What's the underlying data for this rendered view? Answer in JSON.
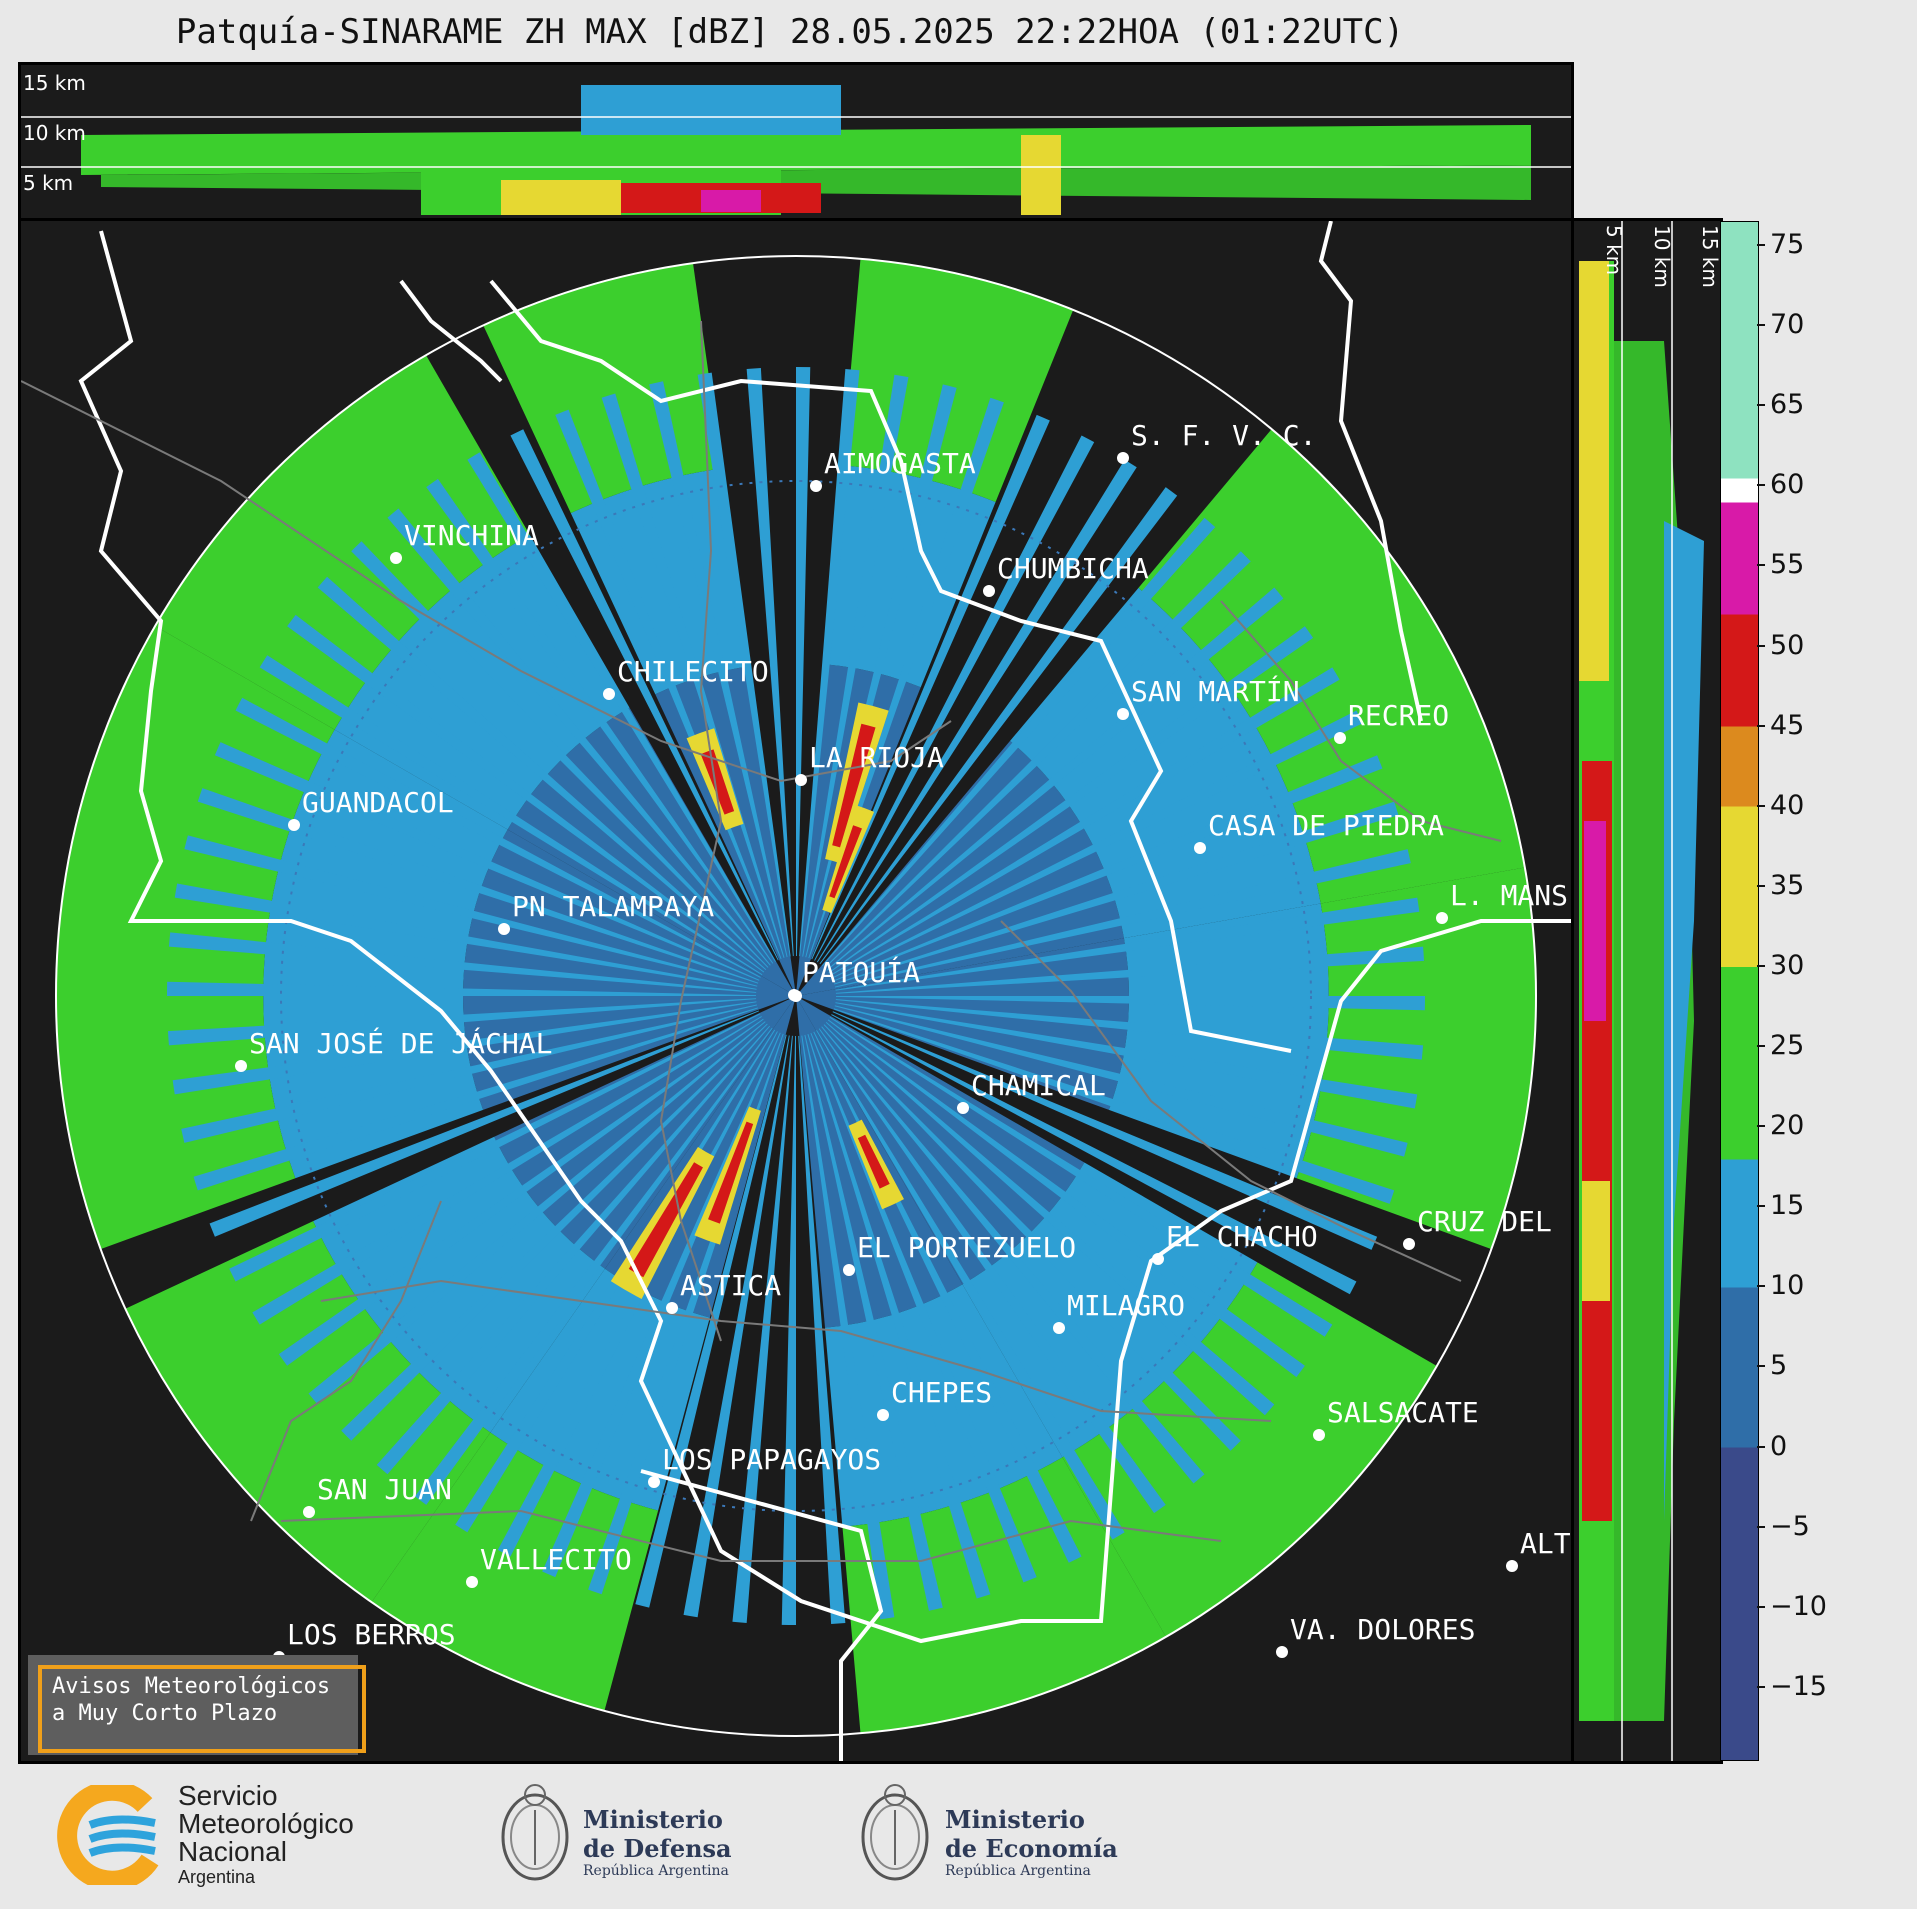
{
  "title": "Patquía-SINARAME ZH MAX [dBZ] 28.05.2025 22:22HOA (01:22UTC)",
  "top_panel": {
    "altitudes": [
      "15 km",
      "10 km",
      "5 km"
    ]
  },
  "side_panel": {
    "altitudes": [
      "5 km",
      "10 km",
      "15 km"
    ]
  },
  "colorbar": {
    "ticks": [
      "75",
      "70",
      "65",
      "60",
      "55",
      "50",
      "45",
      "40",
      "35",
      "30",
      "25",
      "20",
      "15",
      "10",
      "5",
      "0",
      "−5",
      "−10",
      "−15"
    ],
    "range": [
      -19.5,
      76.5
    ],
    "stops": [
      {
        "from": -19.5,
        "to": 0,
        "color": "#3a4a8a"
      },
      {
        "from": 0,
        "to": 10,
        "color": "#2f6ea8"
      },
      {
        "from": 10,
        "to": 18,
        "color": "#2e9fd4"
      },
      {
        "from": 18,
        "to": 30,
        "color": "#3ccf2d"
      },
      {
        "from": 30,
        "to": 40,
        "color": "#e6d832"
      },
      {
        "from": 40,
        "to": 45,
        "color": "#dc8a1e"
      },
      {
        "from": 45,
        "to": 52,
        "color": "#d41818"
      },
      {
        "from": 52,
        "to": 59,
        "color": "#d81aa8"
      },
      {
        "from": 59,
        "to": 60.5,
        "color": "#ffffff"
      },
      {
        "from": 60.5,
        "to": 76.5,
        "color": "#8ee2c0"
      }
    ]
  },
  "cities": [
    {
      "name": "AIMOGASTA"
    },
    {
      "name": "S. F. V. C."
    },
    {
      "name": "VINCHINA"
    },
    {
      "name": "CHUMBICHA"
    },
    {
      "name": "CHILECITO"
    },
    {
      "name": "SAN MARTÍN"
    },
    {
      "name": "RECREO"
    },
    {
      "name": "LA RIOJA"
    },
    {
      "name": "GUANDACOL"
    },
    {
      "name": "CASA DE PIEDRA"
    },
    {
      "name": "L. MANS"
    },
    {
      "name": "PN TALAMPAYA"
    },
    {
      "name": "PATQUÍA"
    },
    {
      "name": "SAN JOSÉ DE JÁCHAL"
    },
    {
      "name": "CHAMICAL"
    },
    {
      "name": "CRUZ DEL"
    },
    {
      "name": "EL CHACHO"
    },
    {
      "name": "EL PORTEZUELO"
    },
    {
      "name": "ASTICA"
    },
    {
      "name": "MILAGRO"
    },
    {
      "name": "CHEPES"
    },
    {
      "name": "SALSACATE"
    },
    {
      "name": "LOS PAPAGAYOS"
    },
    {
      "name": "SAN JUAN"
    },
    {
      "name": "ALT"
    },
    {
      "name": "VALLECITO"
    },
    {
      "name": "VA. DOLORES"
    },
    {
      "name": "LOS BERROS"
    }
  ],
  "warning_box": {
    "line1": "Avisos Meteorológicos",
    "line2": "a Muy Corto Plazo"
  },
  "logos": {
    "smn": {
      "line1": "Servicio",
      "line2": "Meteorológico",
      "line3": "Nacional",
      "line4": "Argentina"
    },
    "defensa": {
      "line1": "Ministerio",
      "line2": "de Defensa",
      "line3": "República Argentina"
    },
    "economia": {
      "line1": "Ministerio",
      "line2": "de Economía",
      "line3": "República Argentina"
    }
  }
}
